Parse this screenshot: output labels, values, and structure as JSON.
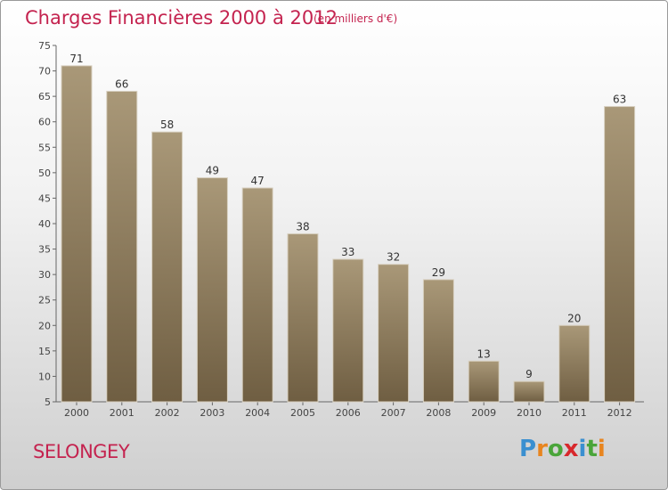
{
  "chart_data": {
    "type": "bar",
    "title": "Charges Financières 2000 à 2012",
    "subtitle": "(en milliers d'€)",
    "categories": [
      "2000",
      "2001",
      "2002",
      "2003",
      "2004",
      "2005",
      "2006",
      "2007",
      "2008",
      "2009",
      "2010",
      "2011",
      "2012"
    ],
    "values": [
      71,
      66,
      58,
      49,
      47,
      38,
      33,
      32,
      29,
      13,
      9,
      20,
      63
    ],
    "ylim": [
      5,
      75
    ],
    "yticks": [
      5,
      10,
      15,
      20,
      25,
      30,
      35,
      40,
      45,
      50,
      55,
      60,
      65,
      70,
      75
    ],
    "grid": false,
    "legend": "none",
    "bar_color_top": "#a99878",
    "bar_color_bottom": "#6f5e42"
  },
  "footer": {
    "town": "SELONGEY",
    "logo_letters": [
      {
        "ch": "P",
        "color": "#3a8fd0"
      },
      {
        "ch": "r",
        "color": "#e8851f"
      },
      {
        "ch": "o",
        "color": "#4aa53a"
      },
      {
        "ch": "x",
        "color": "#d8282c"
      },
      {
        "ch": "i",
        "color": "#3a8fd0"
      },
      {
        "ch": "t",
        "color": "#4aa53a"
      },
      {
        "ch": "i",
        "color": "#e8851f"
      }
    ]
  }
}
